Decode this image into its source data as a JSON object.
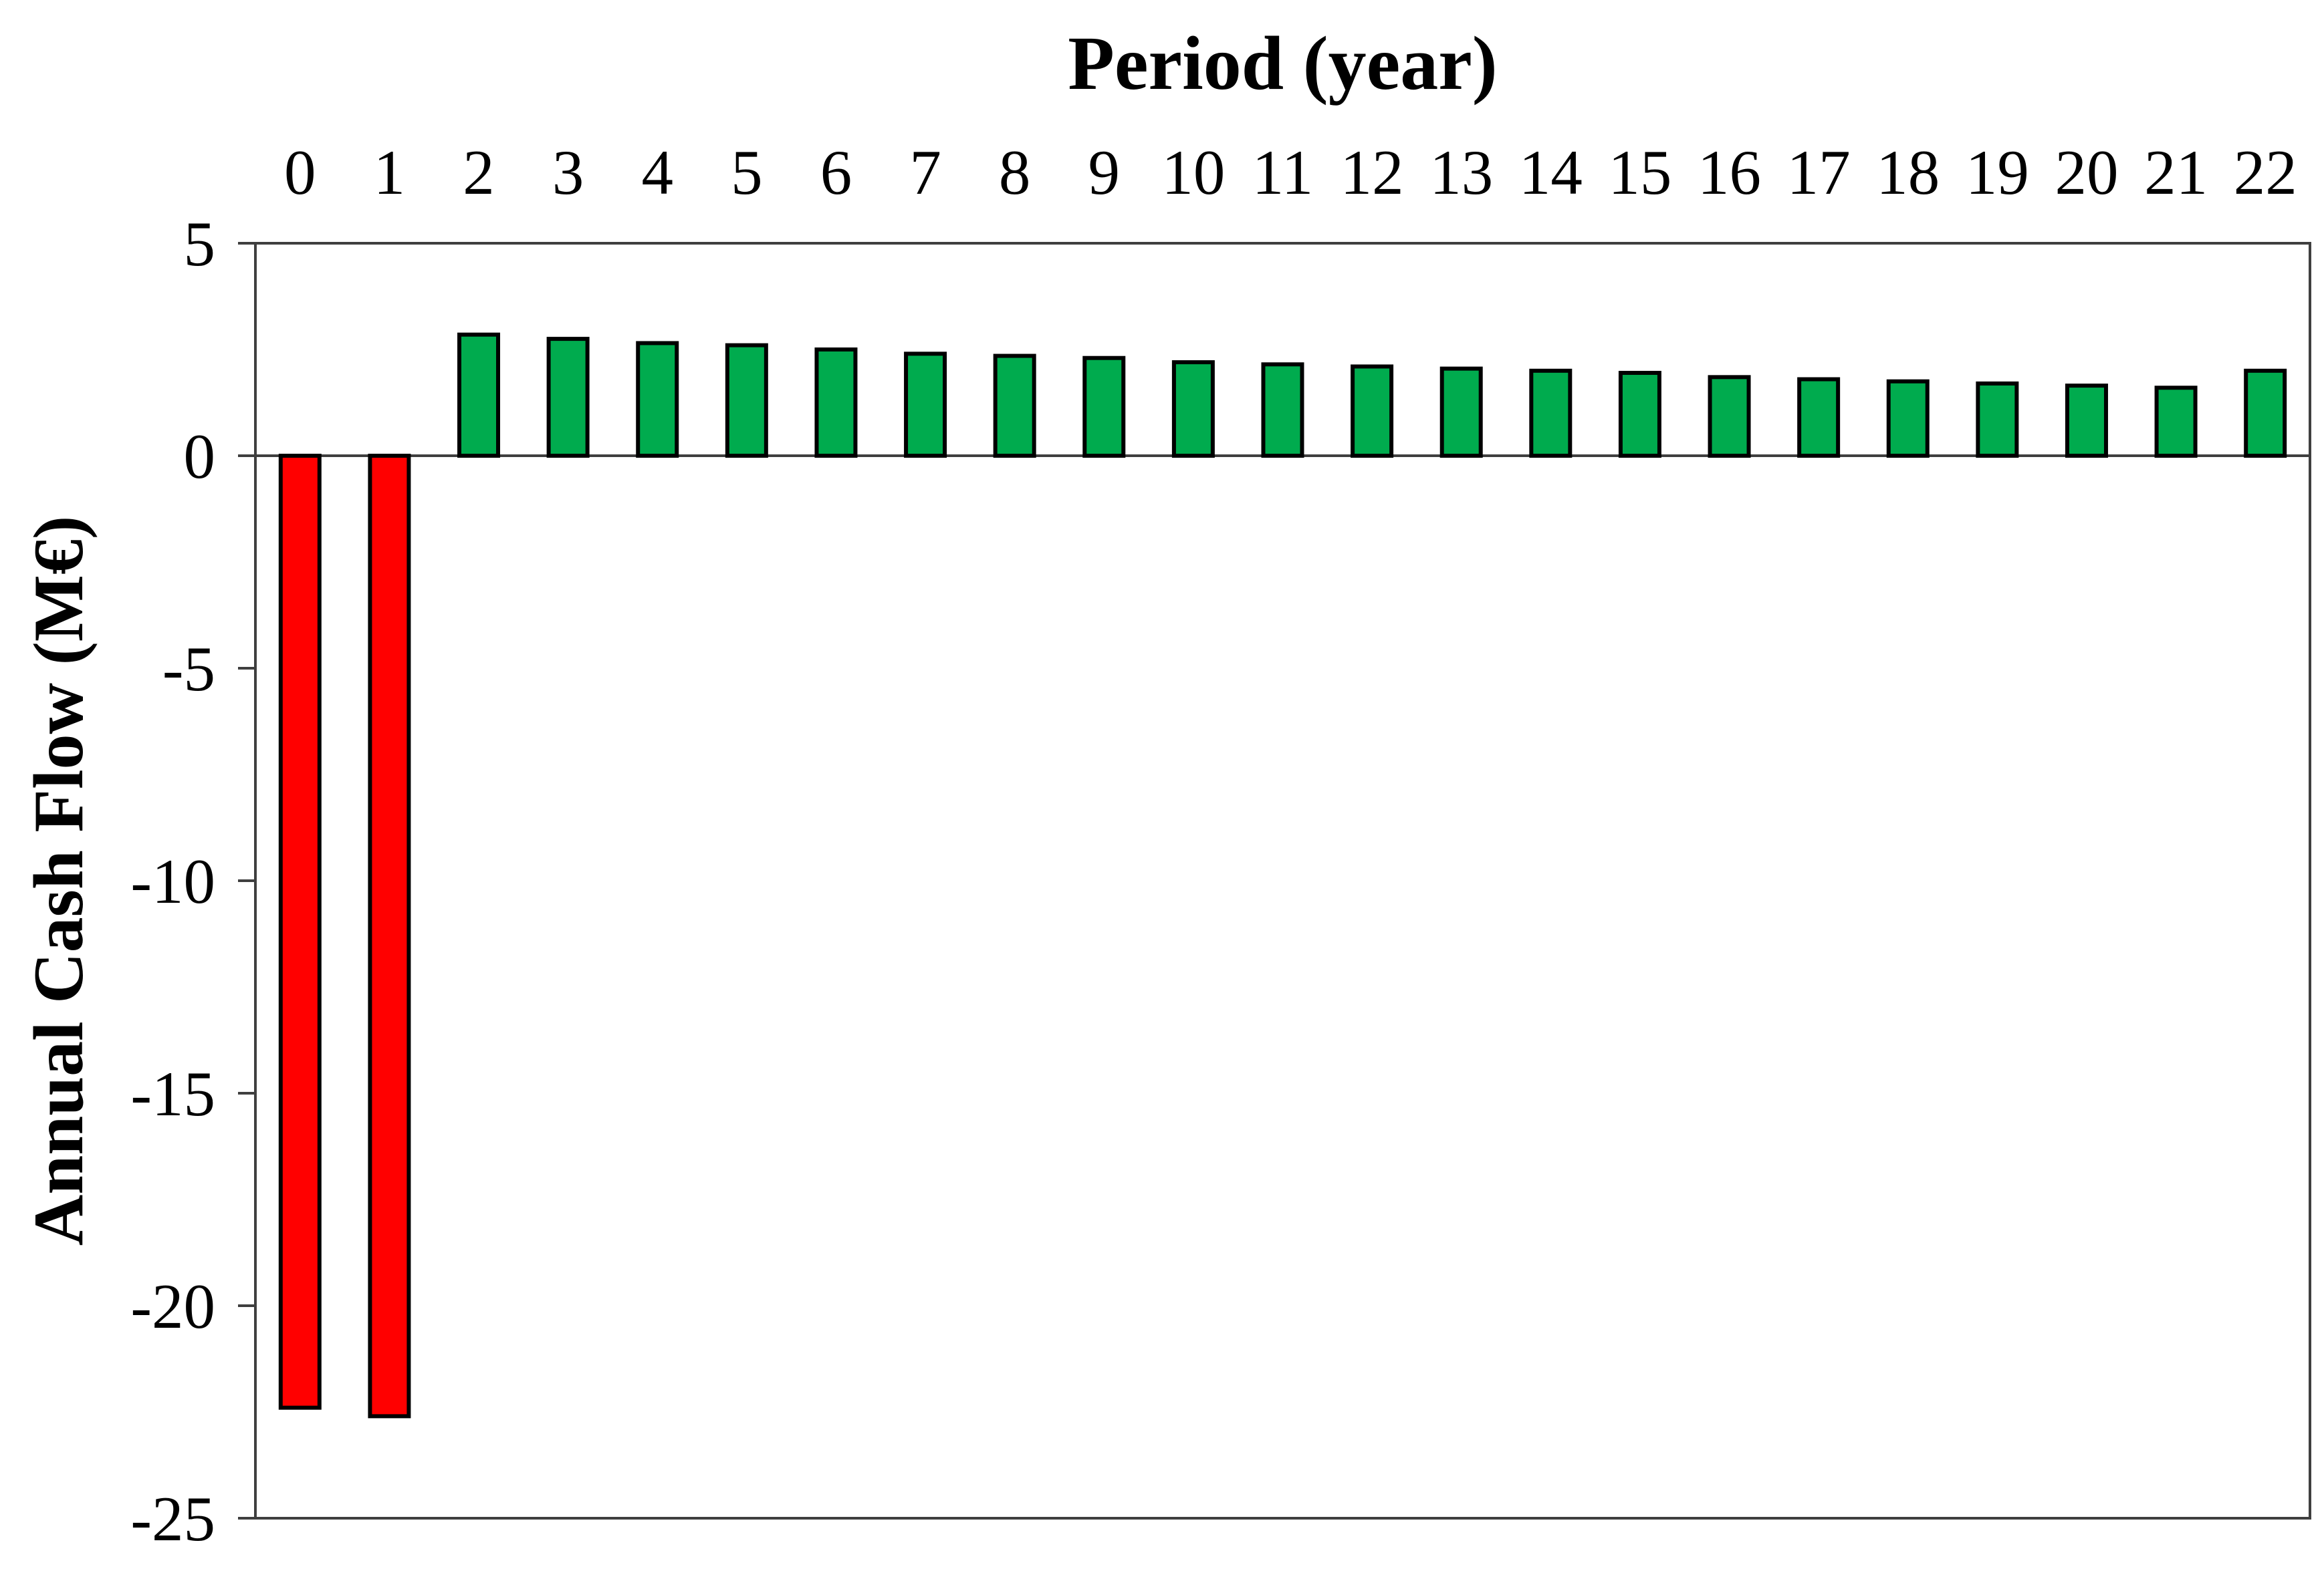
{
  "chart_data": {
    "type": "bar",
    "title": "Period (year)",
    "xlabel": "Period (year)",
    "ylabel": "Annual Cash Flow (M€)",
    "categories": [
      0,
      1,
      2,
      3,
      4,
      5,
      6,
      7,
      8,
      9,
      10,
      11,
      12,
      13,
      14,
      15,
      16,
      17,
      18,
      19,
      20,
      21,
      22
    ],
    "values": [
      -22.4,
      -22.6,
      2.85,
      2.75,
      2.65,
      2.6,
      2.5,
      2.4,
      2.35,
      2.3,
      2.2,
      2.15,
      2.1,
      2.05,
      2.0,
      1.95,
      1.85,
      1.8,
      1.75,
      1.7,
      1.65,
      1.6,
      2.0
    ],
    "series_note": "single series; negative bars red, positive bars green",
    "ylim": [
      -25,
      5
    ],
    "yticks": [
      5,
      0,
      -5,
      -10,
      -15,
      -20,
      -25
    ],
    "x_axis_side": "top",
    "grid": false,
    "legend": "none",
    "colors": {
      "positive_bar": "#00AB4E",
      "negative_bar": "#FF0000",
      "bar_border": "#000000",
      "axis_line": "#3F3F3F",
      "text": "#000000",
      "background": "#FFFFFF"
    }
  }
}
